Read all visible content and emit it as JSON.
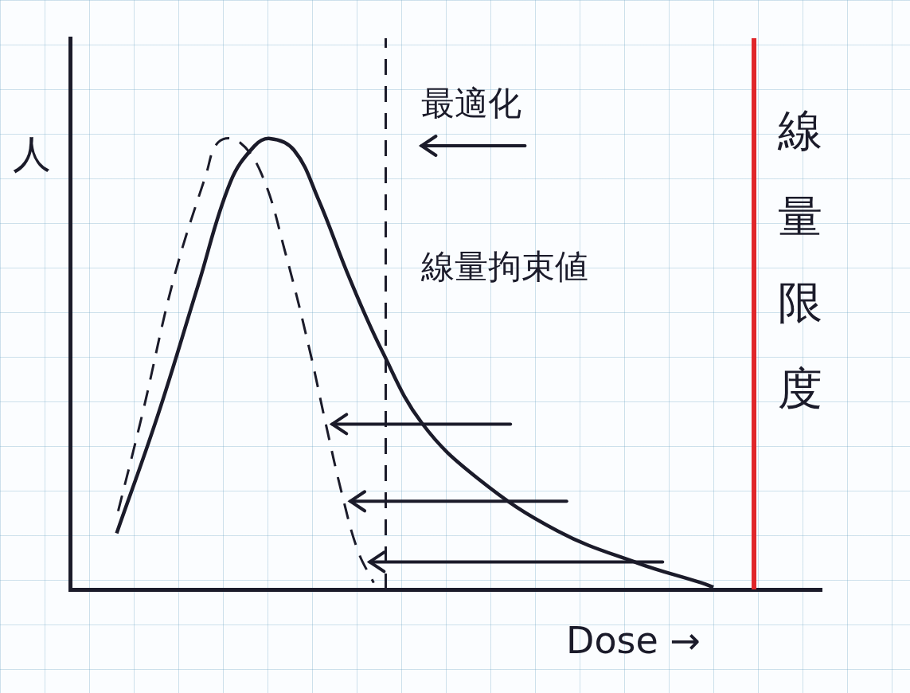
{
  "chart_data": {
    "type": "line",
    "x_label": "Dose →",
    "y_label": "人",
    "xlim": [
      0,
      100
    ],
    "ylim": [
      0,
      100
    ],
    "tick_labels": false,
    "grid": false,
    "series": [
      {
        "color": "#1b1b2a",
        "line_style": "solid",
        "x": [
          6.2,
          11.7,
          17,
          21.3,
          24.5,
          26.6,
          29.8,
          33,
          37.2,
          41.5,
          46.8,
          54.3,
          64.9,
          75.5,
          84,
          85.6
        ],
        "values": [
          10.2,
          31.7,
          55,
          73.8,
          80.4,
          81.8,
          79.7,
          70.9,
          56.4,
          43.3,
          30.2,
          20.1,
          10.6,
          4.8,
          1.2,
          0.4
        ]
      },
      {
        "color": "#1b1b2a",
        "line_style": "dashed",
        "x": [
          6.4,
          9.6,
          13.8,
          18.1,
          19.7,
          22.3,
          25.5,
          28.7,
          31.9,
          34,
          36.2,
          38.3,
          40.4
        ],
        "values": [
          14.2,
          31.7,
          56.4,
          75.3,
          81.1,
          81.4,
          75.3,
          60.8,
          43.3,
          30.2,
          17.2,
          7,
          1.2
        ]
      }
    ],
    "vlines": [
      {
        "x": 42,
        "label": "線量拘束値",
        "color": "#1b1b2a",
        "line_style": "dashed"
      },
      {
        "x": 91,
        "label": "線量限度",
        "color": "#e0262a",
        "line_style": "solid"
      }
    ],
    "annotations": [
      {
        "text": "最適化"
      }
    ]
  }
}
